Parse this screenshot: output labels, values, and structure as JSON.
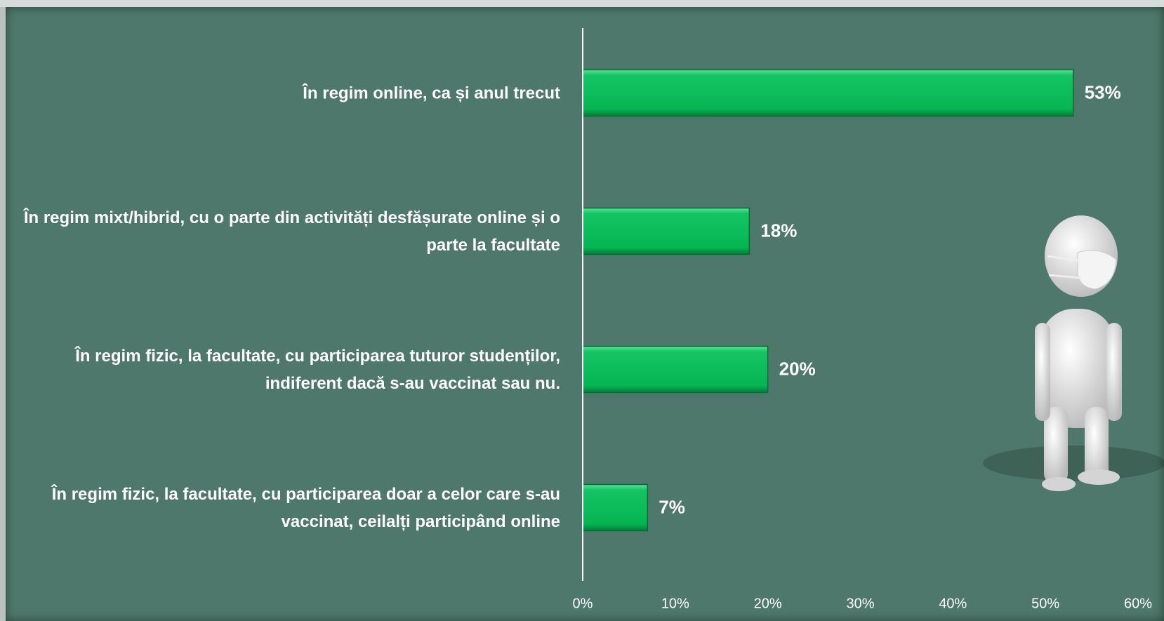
{
  "chart_data": {
    "type": "bar",
    "orientation": "horizontal",
    "categories": [
      "În regim online, ca și anul trecut",
      "În regim mixt/hibrid, cu o parte din activități desfășurate online și o parte la facultate",
      "În regim fizic, la facultate, cu participarea tuturor studenților, indiferent dacă s-au vaccinat sau nu.",
      "În regim fizic, la facultate, cu participarea doar a celor care s-au vaccinat, ceilalți participând online"
    ],
    "values": [
      53,
      18,
      20,
      7
    ],
    "value_labels": [
      "53%",
      "18%",
      "20%",
      "7%"
    ],
    "color": "#0ab956",
    "xlim": [
      0,
      60
    ],
    "xticks": [
      {
        "value": 0,
        "label": "0%"
      },
      {
        "value": 10,
        "label": "10%"
      },
      {
        "value": 20,
        "label": "20%"
      },
      {
        "value": 30,
        "label": "30%"
      },
      {
        "value": 40,
        "label": "40%"
      },
      {
        "value": 50,
        "label": "50%"
      },
      {
        "value": 60,
        "label": "60%"
      }
    ]
  }
}
